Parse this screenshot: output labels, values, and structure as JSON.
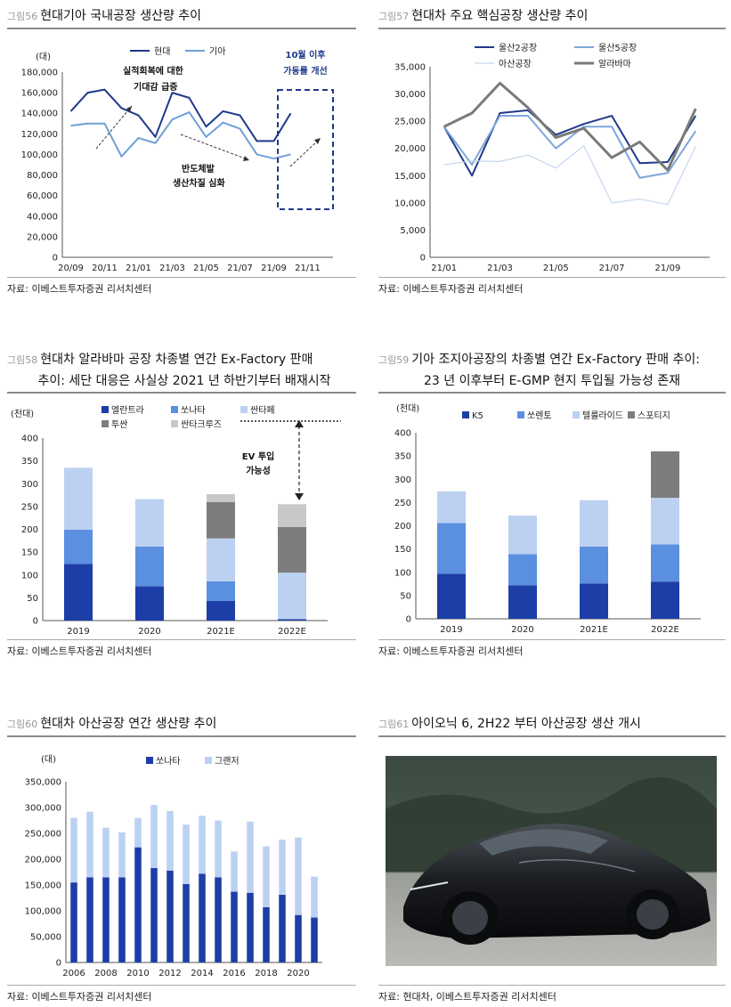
{
  "figures": [
    {
      "id": "fig56",
      "number": "그림56",
      "title": "현대기아 국내공장 생산량 추이",
      "source": "자료: 이베스트투자증권 리서치센터",
      "annotations": [
        "실적회복에 대한 기대감 급증",
        "반도체발 생산차질 심화",
        "10월 이후 가동률 개선"
      ]
    },
    {
      "id": "fig57",
      "number": "그림57",
      "title": "현대차 주요 핵심공장 생산량 추이",
      "source": "자료: 이베스트투자증권 리서치센터"
    },
    {
      "id": "fig58",
      "number": "그림58",
      "title": "현대차 알라바마 공장 차종별 연간 Ex-Factory 판매",
      "title2": "추이: 세단 대응은 사실상 2021 년 하반기부터 배재시작",
      "source": "자료: 이베스트투자증권 리서치센터",
      "annotations": [
        "EV 투입 가능성"
      ]
    },
    {
      "id": "fig59",
      "number": "그림59",
      "title": "기아 조지아공장의 차종별 연간 Ex-Factory 판매 추이:",
      "title2": "23 년 이후부터 E-GMP 현지 투입될 가능성 존재",
      "source": "자료: 이베스트투자증권 리서치센터"
    },
    {
      "id": "fig60",
      "number": "그림60",
      "title": "현대차 아산공장 연간 생산량 추이",
      "source": "자료: 이베스트투자증권 리서치센터"
    },
    {
      "id": "fig61",
      "number": "그림61",
      "title": "아이오닉 6, 2H22 부터 아산공장 생산 개시",
      "source": "자료: 현대차, 이베스트투자증권 리서치센터"
    }
  ],
  "chart_data": [
    {
      "figure": "fig56",
      "type": "line",
      "ylabel": "(대)",
      "ylim": [
        0,
        180000
      ],
      "yticks": [
        0,
        20000,
        40000,
        60000,
        80000,
        100000,
        120000,
        140000,
        160000,
        180000
      ],
      "ytick_labels": [
        "0",
        "20,000",
        "40,000",
        "60,000",
        "80,000",
        "100,000",
        "120,000",
        "140,000",
        "160,000",
        "180,000"
      ],
      "x": [
        "20/09",
        "20/10",
        "20/11",
        "20/12",
        "21/01",
        "21/02",
        "21/03",
        "21/04",
        "21/05",
        "21/06",
        "21/07",
        "21/08",
        "21/09",
        "21/10"
      ],
      "xtick_labels": [
        "20/09",
        "20/11",
        "21/01",
        "21/03",
        "21/05",
        "21/07",
        "21/09",
        "21/11"
      ],
      "series": [
        {
          "name": "현대",
          "color": "#1f3a8a",
          "values": [
            142000,
            160000,
            163000,
            145000,
            138000,
            117000,
            160000,
            155000,
            127000,
            142000,
            138000,
            113000,
            113000,
            140000
          ]
        },
        {
          "name": "기아",
          "color": "#6f9fd8",
          "values": [
            128000,
            130000,
            130000,
            98000,
            116000,
            111000,
            134000,
            141000,
            117000,
            131000,
            125000,
            100000,
            96000,
            100000
          ]
        }
      ],
      "legend": "top"
    },
    {
      "figure": "fig57",
      "type": "line",
      "ylim": [
        0,
        35000
      ],
      "yticks": [
        0,
        5000,
        10000,
        15000,
        20000,
        25000,
        30000,
        35000
      ],
      "ytick_labels": [
        "0",
        "5,000",
        "10,000",
        "15,000",
        "20,000",
        "25,000",
        "30,000",
        "35,000"
      ],
      "x": [
        "21/01",
        "21/02",
        "21/03",
        "21/04",
        "21/05",
        "21/06",
        "21/07",
        "21/08",
        "21/09",
        "21/10"
      ],
      "xtick_labels": [
        "21/01",
        "21/03",
        "21/05",
        "21/07",
        "21/09"
      ],
      "series": [
        {
          "name": "울산2공장",
          "color": "#1f3a8a",
          "width": 2,
          "values": [
            24000,
            15000,
            26500,
            27000,
            22500,
            24500,
            26000,
            17300,
            17500,
            26000
          ]
        },
        {
          "name": "울산5공장",
          "color": "#7ea6db",
          "width": 2,
          "values": [
            24000,
            17000,
            26000,
            26000,
            20000,
            24000,
            24000,
            14600,
            15500,
            23200
          ]
        },
        {
          "name": "아산공장",
          "color": "#c5d7ef",
          "width": 1.2,
          "values": [
            17000,
            17700,
            17600,
            18800,
            16400,
            20500,
            10000,
            10700,
            9700,
            20400
          ]
        },
        {
          "name": "알라바마",
          "color": "#7a7a7a",
          "width": 3,
          "values": [
            24000,
            26500,
            32000,
            27500,
            22000,
            23700,
            18300,
            21200,
            16000,
            27300
          ]
        }
      ],
      "legend": "top"
    },
    {
      "figure": "fig58",
      "type": "bar",
      "stacked": true,
      "ylabel": "(천대)",
      "ylim": [
        0,
        400
      ],
      "yticks": [
        0,
        50,
        100,
        150,
        200,
        250,
        300,
        350,
        400
      ],
      "categories": [
        "2019",
        "2020",
        "2021E",
        "2022E"
      ],
      "series": [
        {
          "name": "엘란트라",
          "color": "#1d3ea6",
          "values": [
            124,
            75,
            43,
            3
          ]
        },
        {
          "name": "쏘나타",
          "color": "#5b8fe0",
          "values": [
            75,
            87,
            43,
            0
          ]
        },
        {
          "name": "싼타페",
          "color": "#bcd1f2",
          "values": [
            136,
            104,
            94,
            102
          ]
        },
        {
          "name": "투싼",
          "color": "#7d7d7d",
          "values": [
            0,
            0,
            80,
            100
          ]
        },
        {
          "name": "싼타크루즈",
          "color": "#c8c8c8",
          "values": [
            0,
            0,
            17,
            50
          ]
        }
      ],
      "legend": "top"
    },
    {
      "figure": "fig59",
      "type": "bar",
      "stacked": true,
      "ylabel": "(천대)",
      "ylim": [
        0,
        400
      ],
      "yticks": [
        0,
        50,
        100,
        150,
        200,
        250,
        300,
        350,
        400
      ],
      "categories": [
        "2019",
        "2020",
        "2021E",
        "2022E"
      ],
      "series": [
        {
          "name": "K5",
          "color": "#1d3ea6",
          "values": [
            97,
            72,
            76,
            80
          ]
        },
        {
          "name": "쏘렌토",
          "color": "#5b8fe0",
          "values": [
            109,
            67,
            79,
            80
          ]
        },
        {
          "name": "텔룰라이드",
          "color": "#bcd1f2",
          "values": [
            68,
            83,
            100,
            100
          ]
        },
        {
          "name": "스포티지",
          "color": "#7d7d7d",
          "values": [
            0,
            0,
            0,
            100
          ]
        }
      ],
      "legend": "top"
    },
    {
      "figure": "fig60",
      "type": "bar",
      "stacked": true,
      "ylabel": "(대)",
      "ylim": [
        0,
        350000
      ],
      "yticks": [
        0,
        50000,
        100000,
        150000,
        200000,
        250000,
        300000,
        350000
      ],
      "ytick_labels": [
        "0",
        "50,000",
        "100,000",
        "150,000",
        "200,000",
        "250,000",
        "300,000",
        "350,000"
      ],
      "categories": [
        "2006",
        "2007",
        "2008",
        "2009",
        "2010",
        "2011",
        "2012",
        "2013",
        "2014",
        "2015",
        "2016",
        "2017",
        "2018",
        "2019",
        "2020",
        "2021"
      ],
      "xtick_labels": [
        "2006",
        "2008",
        "2010",
        "2012",
        "2014",
        "2016",
        "2018",
        "2020"
      ],
      "series": [
        {
          "name": "쏘나타",
          "color": "#1d3ea6",
          "values": [
            155000,
            165000,
            165000,
            165000,
            223000,
            183000,
            178000,
            152000,
            172000,
            165000,
            137000,
            135000,
            107000,
            131000,
            92000,
            87000
          ]
        },
        {
          "name": "그랜저",
          "color": "#bcd1f2",
          "values": [
            125000,
            127000,
            96000,
            87000,
            57000,
            122000,
            115000,
            115000,
            112000,
            110000,
            78000,
            138000,
            118000,
            107000,
            150000,
            79000
          ]
        }
      ],
      "legend": "top"
    }
  ]
}
